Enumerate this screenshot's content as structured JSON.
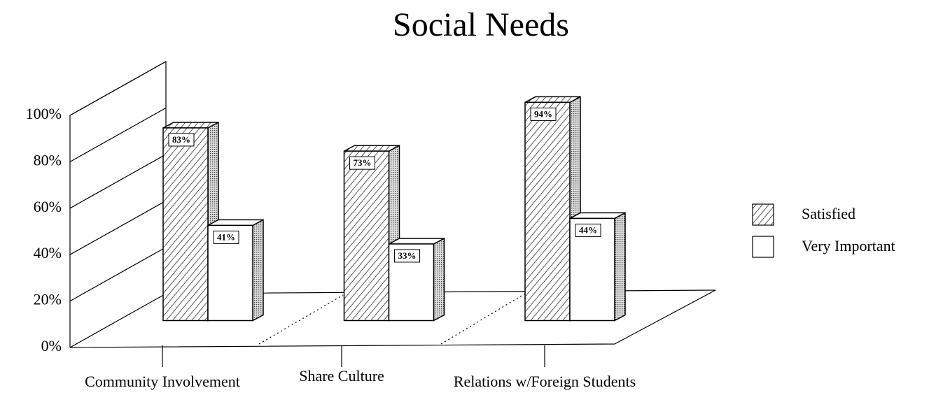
{
  "chart_data": {
    "type": "bar3d",
    "title": "Social Needs",
    "categories": [
      "Community Involvement",
      "Share Culture",
      "Relations w/Foreign Students"
    ],
    "series": [
      {
        "name": "Satisfied",
        "color": "#ffffff",
        "values": [
          83,
          73,
          94
        ],
        "value_labels": [
          "83%",
          "73%",
          "94%"
        ]
      },
      {
        "name": "Very Important",
        "color": "#ffffff",
        "values": [
          41,
          33,
          44
        ],
        "value_labels": [
          "41%",
          "33%",
          "44%"
        ]
      }
    ],
    "ylim": [
      0,
      100
    ],
    "yticks": [
      {
        "value": 0,
        "label": "0%"
      },
      {
        "value": 20,
        "label": "20%"
      },
      {
        "value": 40,
        "label": "40%"
      },
      {
        "value": 60,
        "label": "60%"
      },
      {
        "value": 80,
        "label": "80%"
      },
      {
        "value": 100,
        "label": "100%"
      }
    ],
    "grid": true,
    "legend": "right"
  }
}
